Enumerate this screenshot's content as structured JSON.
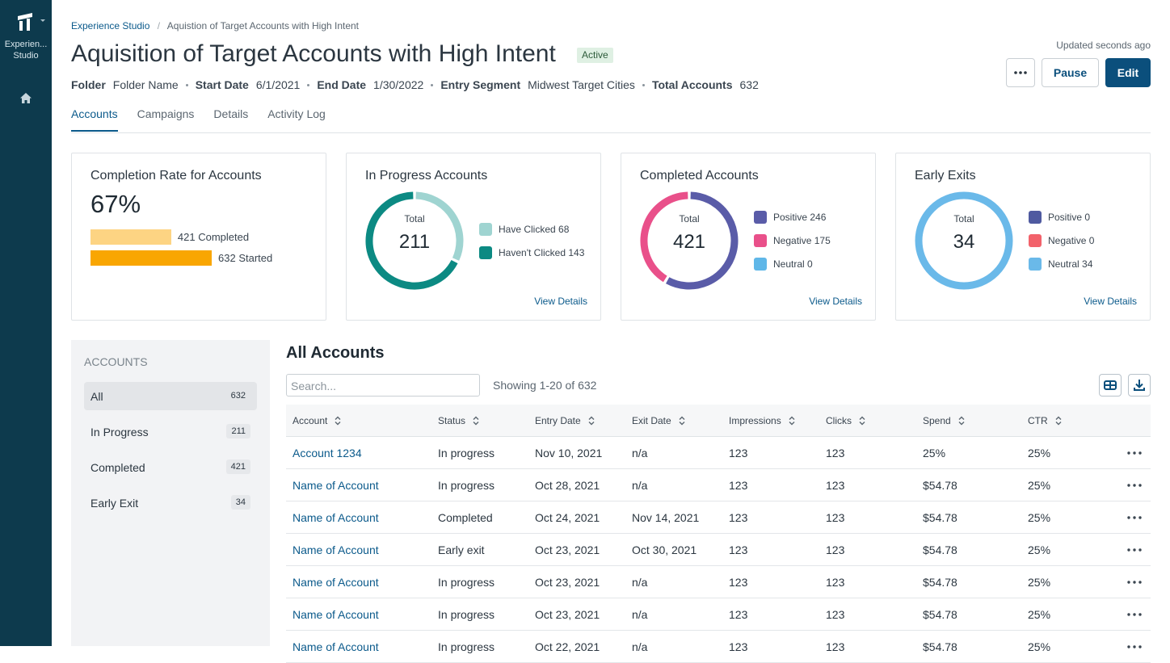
{
  "sidebar": {
    "app_name_lines": [
      "Experien...",
      "Studio"
    ]
  },
  "breadcrumb": [
    "Experience Studio",
    "Aquistion of Target Accounts with High Intent"
  ],
  "header": {
    "title": "Aquisition of Target Accounts with High Intent",
    "status": "Active",
    "updated": "Updated seconds ago",
    "meta": [
      {
        "label": "Folder",
        "value": "Folder Name"
      },
      {
        "label": "Start Date",
        "value": "6/1/2021"
      },
      {
        "label": "End Date",
        "value": "1/30/2022"
      },
      {
        "label": "Entry Segment",
        "value": "Midwest Target Cities"
      },
      {
        "label": "Total Accounts",
        "value": 632
      }
    ]
  },
  "buttons": [
    "Pause",
    "Edit"
  ],
  "tabs": [
    "Accounts",
    "Campaigns",
    "Details",
    "Activity Log"
  ],
  "completion_card": {
    "title": "Completion Rate for Accounts",
    "rate": "67%",
    "bars": [
      {
        "value": 421,
        "label": "Completed",
        "color": "#fdd483"
      },
      {
        "value": 632,
        "label": "Started",
        "color": "#f9a602"
      }
    ]
  },
  "donut_cards": [
    {
      "title": "In Progress Accounts",
      "total_label": "Total",
      "total": 211,
      "link": "View Details",
      "segments": [
        {
          "name": "Have Clicked",
          "value": 68,
          "color": "#9fd4d1"
        },
        {
          "name": "Haven't Clicked",
          "value": 143,
          "color": "#0c8a83"
        }
      ]
    },
    {
      "title": "Completed Accounts",
      "total_label": "Total",
      "total": 421,
      "link": "View Details",
      "segments": [
        {
          "name": "Positive",
          "value": 246,
          "color": "#5a5ca8"
        },
        {
          "name": "Negative",
          "value": 175,
          "color": "#e9508a"
        },
        {
          "name": "Neutral",
          "value": 0,
          "color": "#5fb7e8"
        }
      ]
    },
    {
      "title": "Early Exits",
      "total_label": "Total",
      "total": 34,
      "link": "View Details",
      "segments": [
        {
          "name": "Positive",
          "value": 0,
          "color": "#4f5aa0"
        },
        {
          "name": "Negative",
          "value": 0,
          "color": "#f2626b"
        },
        {
          "name": "Neutral",
          "value": 34,
          "color": "#6ab9e9"
        }
      ]
    }
  ],
  "accounts_panel": {
    "heading": "ACCOUNTS",
    "filters": [
      {
        "label": "All",
        "count": 632
      },
      {
        "label": "In Progress",
        "count": 211
      },
      {
        "label": "Completed",
        "count": 421
      },
      {
        "label": "Early Exit",
        "count": 34
      }
    ]
  },
  "table": {
    "title": "All Accounts",
    "search_placeholder": "Search...",
    "showing": "Showing 1-20 of 632",
    "columns": [
      "Account",
      "Status",
      "Entry Date",
      "Exit Date",
      "Impressions",
      "Clicks",
      "Spend",
      "CTR"
    ],
    "rows": [
      [
        "Account 1234",
        "In progress",
        "Nov 10, 2021",
        "n/a",
        123,
        123,
        "25%",
        "25%"
      ],
      [
        "Name of Account",
        "In progress",
        "Oct 28, 2021",
        "n/a",
        123,
        123,
        "$54.78",
        "25%"
      ],
      [
        "Name of Account",
        "Completed",
        "Oct 24, 2021",
        "Nov 14, 2021",
        123,
        123,
        "$54.78",
        "25%"
      ],
      [
        "Name of Account",
        "Early exit",
        "Oct 23, 2021",
        "Oct 30, 2021",
        123,
        123,
        "$54.78",
        "25%"
      ],
      [
        "Name of Account",
        "In progress",
        "Oct 23, 2021",
        "n/a",
        123,
        123,
        "$54.78",
        "25%"
      ],
      [
        "Name of Account",
        "In progress",
        "Oct 23, 2021",
        "n/a",
        123,
        123,
        "$54.78",
        "25%"
      ],
      [
        "Name of Account",
        "In progress",
        "Oct 22, 2021",
        "n/a",
        123,
        123,
        "$54.78",
        "25%"
      ]
    ]
  }
}
